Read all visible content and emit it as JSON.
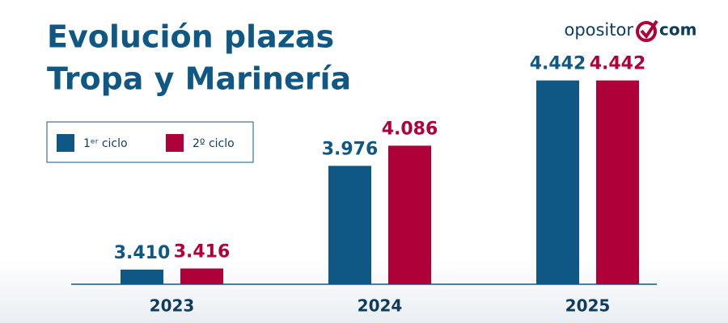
{
  "chart_data": {
    "type": "bar",
    "title": [
      "Evolución plazas",
      "Tropa y Marinería"
    ],
    "logo": [
      "opositor",
      "com"
    ],
    "categories": [
      "2023",
      "2024",
      "2025"
    ],
    "series": [
      {
        "name": "1ᵉʳ ciclo",
        "color": "#0f5784",
        "values": [
          3410,
          3976,
          4442
        ],
        "value_labels": [
          "3.410",
          "3.976",
          "4.442"
        ]
      },
      {
        "name": "2º ciclo",
        "color": "#b0003a",
        "values": [
          3416,
          4086,
          4442
        ],
        "value_labels": [
          "3.416",
          "4.086",
          "4.442"
        ]
      }
    ],
    "ylim": [
      3330,
      4480
    ],
    "legend": "upper left"
  }
}
